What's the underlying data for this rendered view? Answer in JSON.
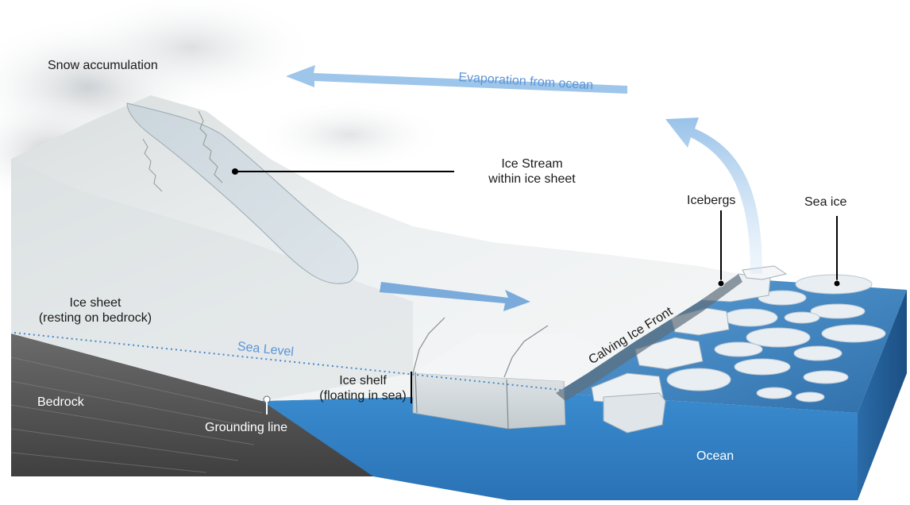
{
  "labels": {
    "snow_accumulation": "Snow accumulation",
    "evaporation": "Evaporation from ocean",
    "ice_stream_line1": "Ice Stream",
    "ice_stream_line2": "within ice sheet",
    "icebergs": "Icebergs",
    "sea_ice": "Sea ice",
    "ice_sheet_line1": "Ice sheet",
    "ice_sheet_line2": "(resting on bedrock)",
    "sea_level": "Sea Level",
    "calving_front": "Calving Ice Front",
    "ice_shelf_line1": "Ice shelf",
    "ice_shelf_line2": "(floating in sea)",
    "bedrock": "Bedrock",
    "grounding_line": "Grounding line",
    "ocean": "Ocean"
  },
  "colors": {
    "ocean": "#2f7fc1",
    "ocean_deep": "#1d5f9e",
    "ice": "#e8ecee",
    "ice_shadow": "#b9c2c7",
    "bedrock": "#5a5a5a",
    "arrow": "#7fb0e0",
    "label_blue": "#5b95d6"
  }
}
